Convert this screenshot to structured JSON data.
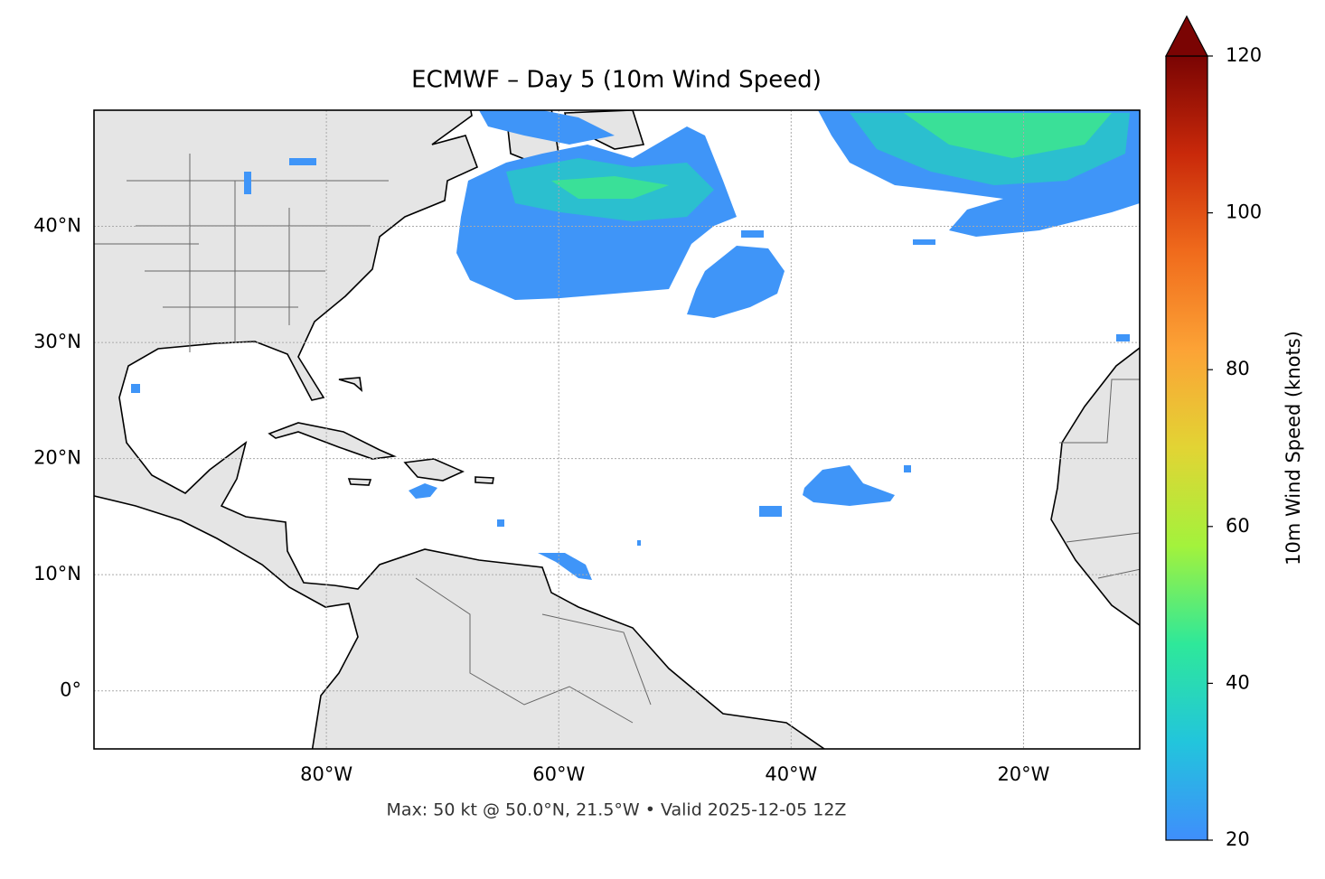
{
  "map": {
    "title": "ECMWF – Day 5 (10m Wind Speed)",
    "lonlim": [
      -100,
      -10
    ],
    "latlim": [
      -5,
      50
    ],
    "lon_ticks": [
      {
        "value": -80,
        "label": "80°W"
      },
      {
        "value": -60,
        "label": "60°W"
      },
      {
        "value": -40,
        "label": "40°W"
      },
      {
        "value": -20,
        "label": "20°W"
      }
    ],
    "lat_ticks": [
      {
        "value": 40,
        "label": "40°N"
      },
      {
        "value": 30,
        "label": "30°N"
      },
      {
        "value": 20,
        "label": "20°N"
      },
      {
        "value": 10,
        "label": "10°N"
      },
      {
        "value": 0,
        "label": "0°"
      }
    ],
    "grid": true,
    "note": "Max: 50 kt @ 50.0°N, 21.5°W • Valid 2025-12-05 12Z",
    "colorbar": {
      "label": "10m Wind Speed (knots)",
      "lim": [
        20,
        120
      ],
      "ticks": [
        20,
        40,
        60,
        80,
        100,
        120
      ],
      "colors": [
        "#3f8efc",
        "#22c5dc",
        "#2ee89a",
        "#a3f23c",
        "#e2d434",
        "#fca336",
        "#f06b1c",
        "#c9290a",
        "#7a0403"
      ]
    }
  }
}
